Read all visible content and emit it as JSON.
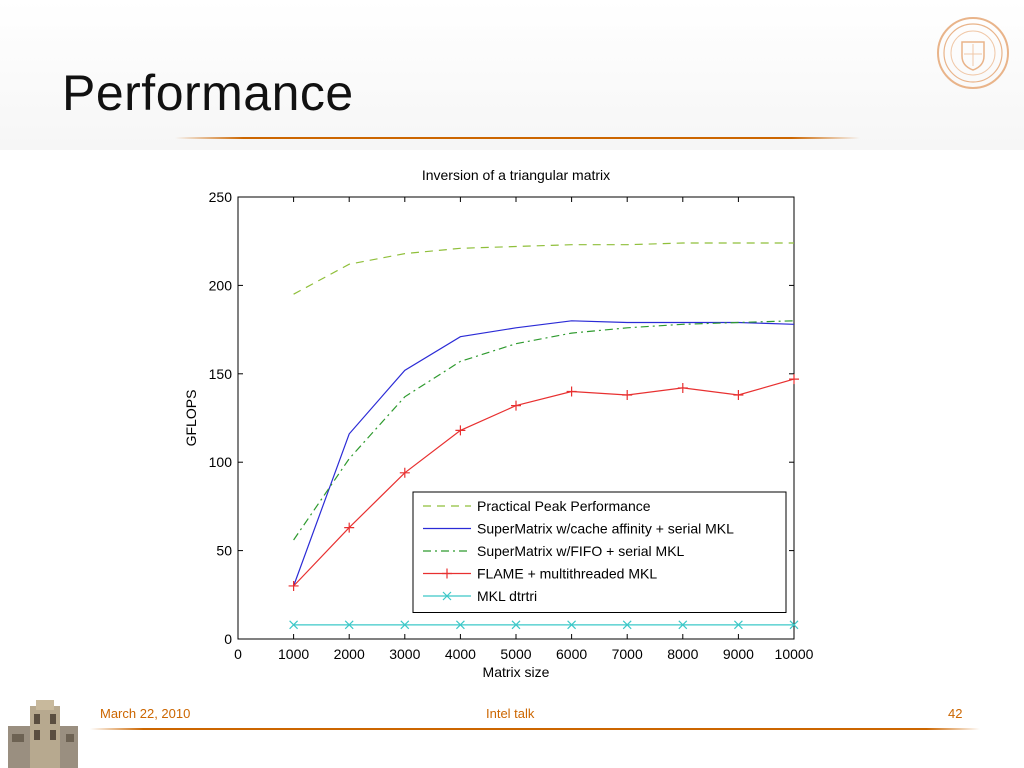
{
  "slide": {
    "title": "Performance",
    "footer_date": "March 22, 2010",
    "footer_center": "Intel talk",
    "page_number": "42"
  },
  "colors": {
    "accent": "#cc6600",
    "peak": "#8fbf3a",
    "cache_affinity": "#2b2bd6",
    "fifo": "#2e9a2e",
    "flame": "#e83030",
    "mkl_dtrtri": "#3cc8c8"
  },
  "chart_data": {
    "type": "line",
    "title": "Inversion of a triangular matrix",
    "xlabel": "Matrix size",
    "ylabel": "GFLOPS",
    "xlim": [
      0,
      10000
    ],
    "ylim": [
      0,
      250
    ],
    "xticks": [
      "0",
      "1000",
      "2000",
      "3000",
      "4000",
      "5000",
      "6000",
      "7000",
      "8000",
      "9000",
      "10000"
    ],
    "yticks": [
      "0",
      "50",
      "100",
      "150",
      "200",
      "250"
    ],
    "legend_position": "lower-right",
    "x": [
      1000,
      2000,
      3000,
      4000,
      5000,
      6000,
      7000,
      8000,
      9000,
      10000
    ],
    "series": [
      {
        "name": "Practical Peak Performance",
        "style": "dashed",
        "marker": "none",
        "values": [
          195,
          212,
          218,
          221,
          222,
          223,
          223,
          224,
          224,
          224
        ]
      },
      {
        "name": "SuperMatrix w/cache affinity + serial MKL",
        "style": "solid",
        "marker": "none",
        "values": [
          30,
          116,
          152,
          171,
          176,
          180,
          179,
          179,
          179,
          178
        ]
      },
      {
        "name": "SuperMatrix w/FIFO + serial MKL",
        "style": "dashdot",
        "marker": "none",
        "values": [
          56,
          102,
          137,
          157,
          167,
          173,
          176,
          178,
          179,
          180
        ]
      },
      {
        "name": "FLAME + multithreaded MKL",
        "style": "solid",
        "marker": "plus",
        "values": [
          30,
          63,
          94,
          118,
          132,
          140,
          138,
          142,
          138,
          147
        ]
      },
      {
        "name": "MKL dtrtri",
        "style": "solid",
        "marker": "x",
        "values": [
          8,
          8,
          8,
          8,
          8,
          8,
          8,
          8,
          8,
          8
        ]
      }
    ]
  }
}
